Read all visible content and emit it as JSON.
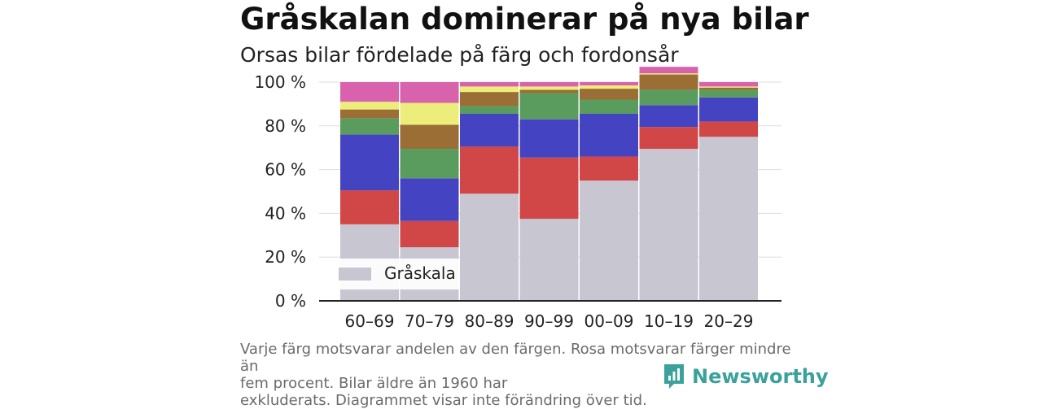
{
  "title": "Gråskalan dominerar på nya bilar",
  "subtitle": "Orsas bilar fördelade på färg och fordonsår",
  "footnote": {
    "line1": "Varje färg motsvarar andelen av den färgen. Rosa motsvarar färger mindre än",
    "line2": "fem procent. Bilar äldre än 1960 har",
    "line3": "exkluderats. Diagrammet visar inte förändring över tid."
  },
  "brand": {
    "name": "Newsworthy",
    "icon": "newsworthy-logo-icon",
    "color": "#3aa29a"
  },
  "chart_data": {
    "type": "bar",
    "stacked": true,
    "categories": [
      "60–69",
      "70–79",
      "80–89",
      "90–99",
      "00–09",
      "10–19",
      "20–29"
    ],
    "y_tick_labels": [
      "0 %",
      "20 %",
      "40 %",
      "60 %",
      "80 %",
      "100 %"
    ],
    "ylim": [
      0,
      100
    ],
    "grid": true,
    "legend": {
      "entries": [
        "Gråskala"
      ],
      "placement": "bottom-left"
    },
    "series": [
      {
        "name": "Gråskala",
        "color": "#c8c6d1",
        "values": [
          35,
          24.5,
          49,
          37.5,
          55,
          69.5,
          75
        ]
      },
      {
        "color": "#d14646",
        "values": [
          15.5,
          12,
          21.5,
          28,
          11,
          10,
          7
        ]
      },
      {
        "color": "#4444c2",
        "values": [
          25.5,
          19.5,
          15,
          17.5,
          19.5,
          10,
          11
        ]
      },
      {
        "color": "#5a9c5e",
        "values": [
          7.5,
          13.5,
          3.5,
          12,
          6.5,
          7,
          3.5
        ]
      },
      {
        "color": "#9a6e34",
        "values": [
          4,
          11,
          6.5,
          1.5,
          5,
          7,
          1
        ]
      },
      {
        "color": "#eded7c",
        "values": [
          3.5,
          10,
          2.5,
          1.5,
          1.5,
          0.5,
          0.5
        ]
      },
      {
        "color": "#d962ac",
        "values": [
          9,
          9.5,
          2,
          2,
          1.5,
          3,
          2
        ]
      }
    ]
  }
}
